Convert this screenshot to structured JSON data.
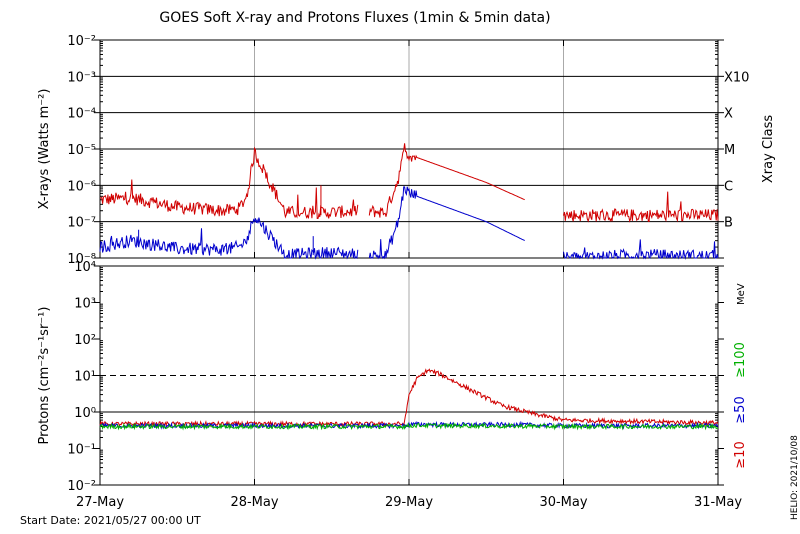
{
  "title": "GOES Soft X-ray and Protons Fluxes   (1min & 5min data)",
  "start_date": "Start Date: 2021/05/27 00:00 UT",
  "credit": "HELIO: 2021/10/08",
  "colors": {
    "red": "#d00000",
    "blue": "#0000cc",
    "green": "#00b000",
    "grid": "#000000",
    "vgrid": "#aaaaaa"
  },
  "chart_data": [
    {
      "type": "line",
      "title": "GOES Soft X-ray and Protons Fluxes   (1min & 5min data)",
      "ylabel": "X-rays (Watts m⁻²)",
      "yscale": "log",
      "ylim": [
        1e-08,
        0.01
      ],
      "y_ticks": [
        "10⁻²",
        "10⁻³",
        "10⁻⁴",
        "10⁻⁵",
        "10⁻⁶",
        "10⁻⁷",
        "10⁻⁸"
      ],
      "right_axis_label": "Xray Class",
      "right_ticks": [
        {
          "label": "X10",
          "value": 0.001
        },
        {
          "label": "X",
          "value": 0.0001
        },
        {
          "label": "M",
          "value": 1e-05
        },
        {
          "label": "C",
          "value": 1e-06
        },
        {
          "label": "B",
          "value": 1e-07
        }
      ],
      "x_days": [
        0,
        0.2,
        0.5,
        0.8,
        0.9,
        0.95,
        1.0,
        1.2,
        1.5,
        1.7,
        1.85,
        1.93,
        1.97,
        2.0,
        2.5,
        2.75,
        3.0,
        3.5,
        4.0
      ],
      "series": [
        {
          "color": "red",
          "values": [
            4e-07,
            4.5e-07,
            2.5e-07,
            2e-07,
            2.3e-07,
            5e-07,
            8e-06,
            1.8e-07,
            1.8e-07,
            2e-07,
            1.8e-07,
            1.5e-06,
            9e-06,
            7e-06,
            1.2e-06,
            4e-07,
            1.5e-07,
            1.5e-07,
            1.5e-07
          ]
        },
        {
          "color": "blue",
          "values": [
            2e-08,
            3e-08,
            1.8e-08,
            1.7e-08,
            2e-08,
            3e-08,
            1.5e-07,
            1.2e-08,
            1.4e-08,
            1.2e-08,
            1.1e-08,
            1e-07,
            9e-07,
            6e-07,
            1e-07,
            3e-08,
            1e-08,
            1.2e-08,
            1.1e-08
          ]
        }
      ],
      "gaps": [
        [
          1.67,
          1.74
        ],
        [
          2.75,
          3.0
        ]
      ]
    },
    {
      "type": "line",
      "ylabel": "Protons (cm⁻²s⁻¹sr⁻¹)",
      "yscale": "log",
      "ylim": [
        0.01,
        10000
      ],
      "y_ticks": [
        "10⁴",
        "10³",
        "10²",
        "10¹",
        "10⁰",
        "10⁻¹",
        "10⁻²"
      ],
      "dashed_threshold": 10,
      "unit_label": "MeV",
      "legend": [
        {
          "label": "≥100",
          "color": "green"
        },
        {
          "label": "≥50",
          "color": "blue"
        },
        {
          "label": "≥10",
          "color": "red"
        }
      ],
      "x_days": [
        0,
        1.0,
        1.97,
        2.0,
        2.05,
        2.12,
        2.2,
        2.4,
        2.6,
        2.8,
        3.0,
        3.5,
        4.0
      ],
      "series": [
        {
          "name": "≥10",
          "color": "red",
          "values": [
            0.47,
            0.47,
            0.47,
            3.0,
            8.0,
            14.0,
            11.0,
            4.0,
            1.5,
            0.9,
            0.6,
            0.55,
            0.5
          ]
        },
        {
          "name": "≥50",
          "color": "blue",
          "values": [
            0.42,
            0.42,
            0.42,
            0.45,
            0.46,
            0.46,
            0.45,
            0.45,
            0.45,
            0.44,
            0.42,
            0.42,
            0.42
          ]
        },
        {
          "name": "≥100",
          "color": "green",
          "values": [
            0.4,
            0.4,
            0.4,
            0.42,
            0.43,
            0.43,
            0.42,
            0.42,
            0.41,
            0.41,
            0.4,
            0.4,
            0.4
          ]
        }
      ]
    }
  ],
  "x_tick_labels": [
    "27-May",
    "28-May",
    "29-May",
    "30-May",
    "31-May"
  ]
}
